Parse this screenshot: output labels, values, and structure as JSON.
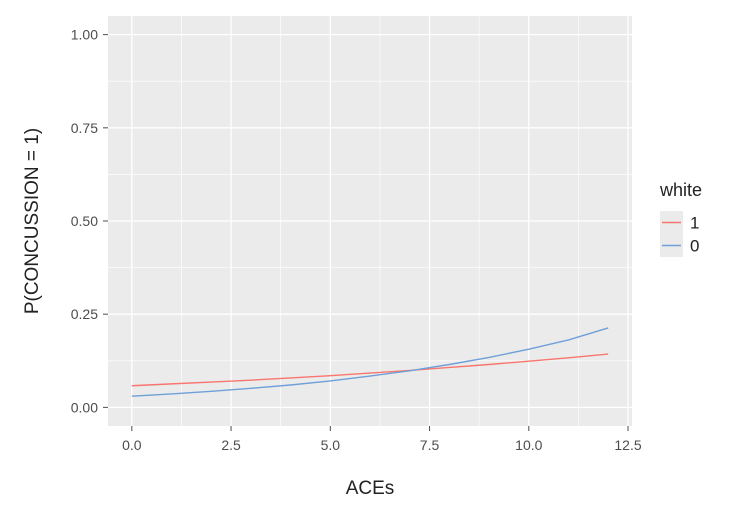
{
  "chart_data": {
    "type": "line",
    "title": "",
    "xlabel": "ACEs",
    "ylabel": "P(CONCUSSION = 1)",
    "xlim": [
      -0.6,
      12.6
    ],
    "ylim": [
      -0.05,
      1.05
    ],
    "x_ticks": [
      0,
      2.5,
      5,
      7.5,
      10,
      12.5
    ],
    "x_tick_labels": [
      "0.0",
      "2.5",
      "5.0",
      "7.5",
      "10.0",
      "12.5"
    ],
    "y_ticks": [
      0,
      0.25,
      0.5,
      0.75,
      1
    ],
    "y_tick_labels": [
      "0.00",
      "0.25",
      "0.50",
      "0.75",
      "1.00"
    ],
    "grid": true,
    "legend": {
      "title": "white",
      "position": "right"
    },
    "x": [
      0,
      1,
      2,
      3,
      4,
      5,
      6,
      7,
      8,
      9,
      10,
      11,
      12
    ],
    "series": [
      {
        "name": "1",
        "color": "#F8766D",
        "values": [
          0.058,
          0.063,
          0.068,
          0.073,
          0.079,
          0.085,
          0.092,
          0.099,
          0.107,
          0.115,
          0.124,
          0.133,
          0.143
        ]
      },
      {
        "name": "0",
        "color": "#6FA0D8",
        "values": [
          0.03,
          0.036,
          0.043,
          0.051,
          0.06,
          0.071,
          0.084,
          0.098,
          0.115,
          0.134,
          0.156,
          0.181,
          0.213
        ]
      }
    ]
  }
}
